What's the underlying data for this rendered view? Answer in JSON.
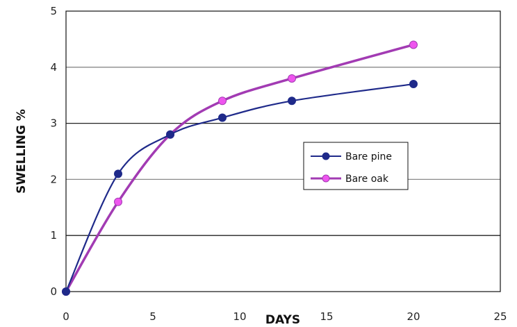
{
  "chart_data": {
    "type": "line",
    "xlabel": "DAYS",
    "ylabel": "SWELLING %",
    "xlim": [
      0,
      25
    ],
    "ylim": [
      0,
      5
    ],
    "xticks": [
      0,
      5,
      10,
      15,
      20,
      25
    ],
    "yticks": [
      0,
      1,
      2,
      3,
      4,
      5
    ],
    "grid": "horizontal",
    "legend_position": "right-center",
    "series": [
      {
        "name": "Bare pine",
        "color": "#1f2a8a",
        "x": [
          0,
          3,
          6,
          9,
          13,
          20
        ],
        "y": [
          0,
          2.1,
          2.8,
          3.1,
          3.4,
          3.7
        ]
      },
      {
        "name": "Bare oak",
        "color": "#a23bb3",
        "marker_color": "#ee55ee",
        "x": [
          0,
          3,
          6,
          9,
          13,
          20
        ],
        "y": [
          0,
          1.6,
          2.8,
          3.4,
          3.8,
          4.4
        ]
      }
    ]
  }
}
